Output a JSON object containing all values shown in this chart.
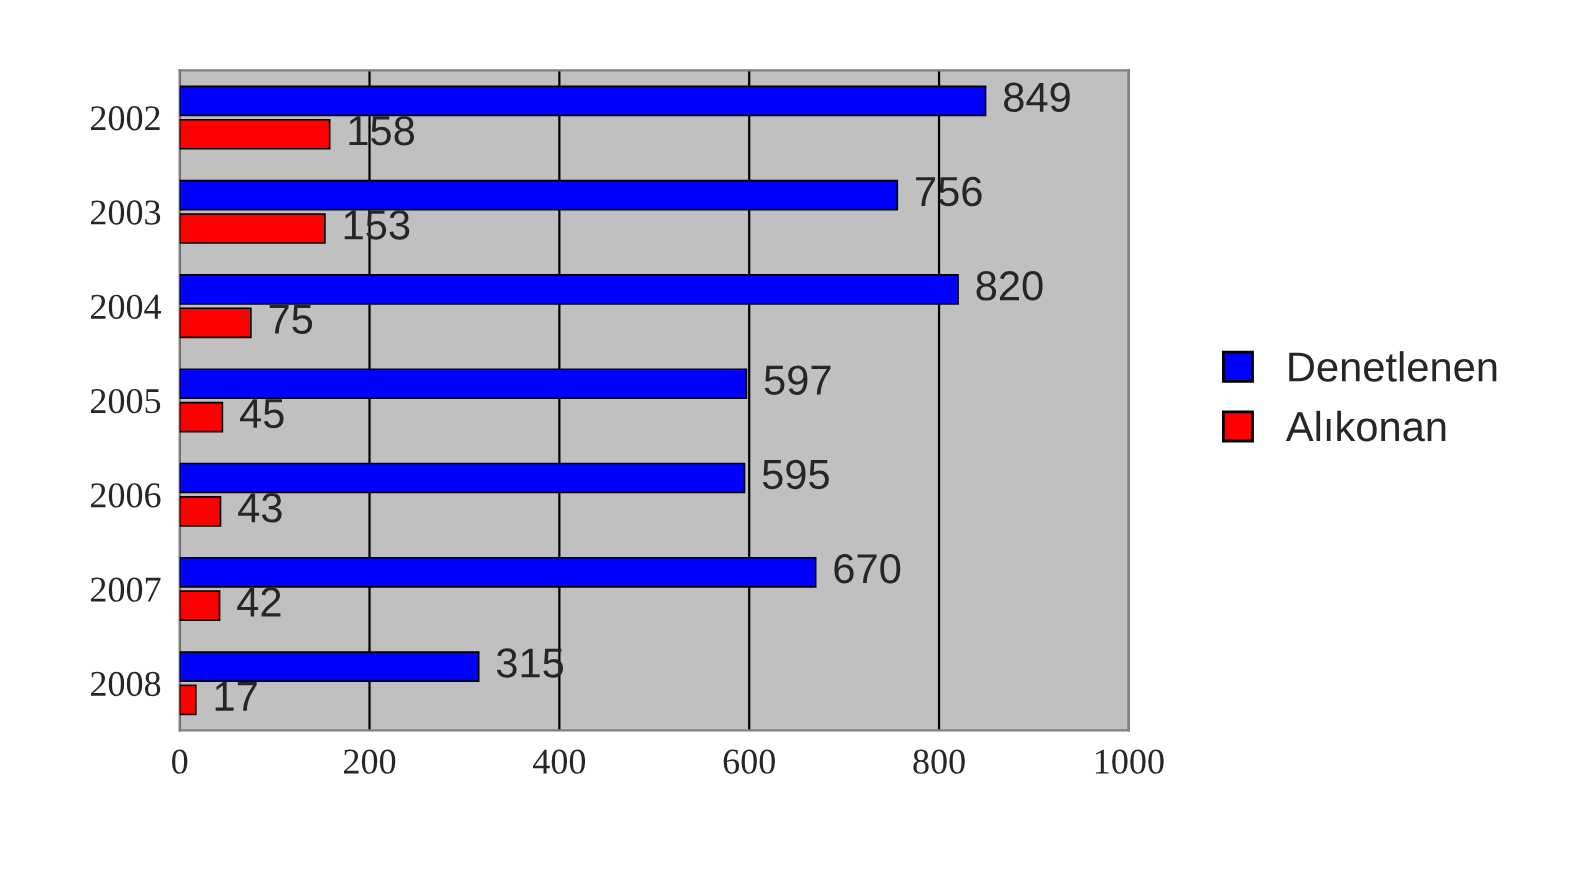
{
  "chart_data": {
    "type": "bar",
    "orientation": "horizontal",
    "categories": [
      "2002",
      "2003",
      "2004",
      "2005",
      "2006",
      "2007",
      "2008"
    ],
    "series": [
      {
        "name": "Denetlenen",
        "color": "#0000ff",
        "values": [
          849,
          756,
          820,
          597,
          595,
          670,
          315
        ]
      },
      {
        "name": "Alıkonan",
        "color": "#ff0000",
        "values": [
          158,
          153,
          75,
          45,
          43,
          42,
          17
        ]
      }
    ],
    "xlim": [
      0,
      1000
    ],
    "xticks": [
      0,
      200,
      400,
      600,
      800,
      1000
    ],
    "grid": "x",
    "legend": "right",
    "data_labels": true
  }
}
